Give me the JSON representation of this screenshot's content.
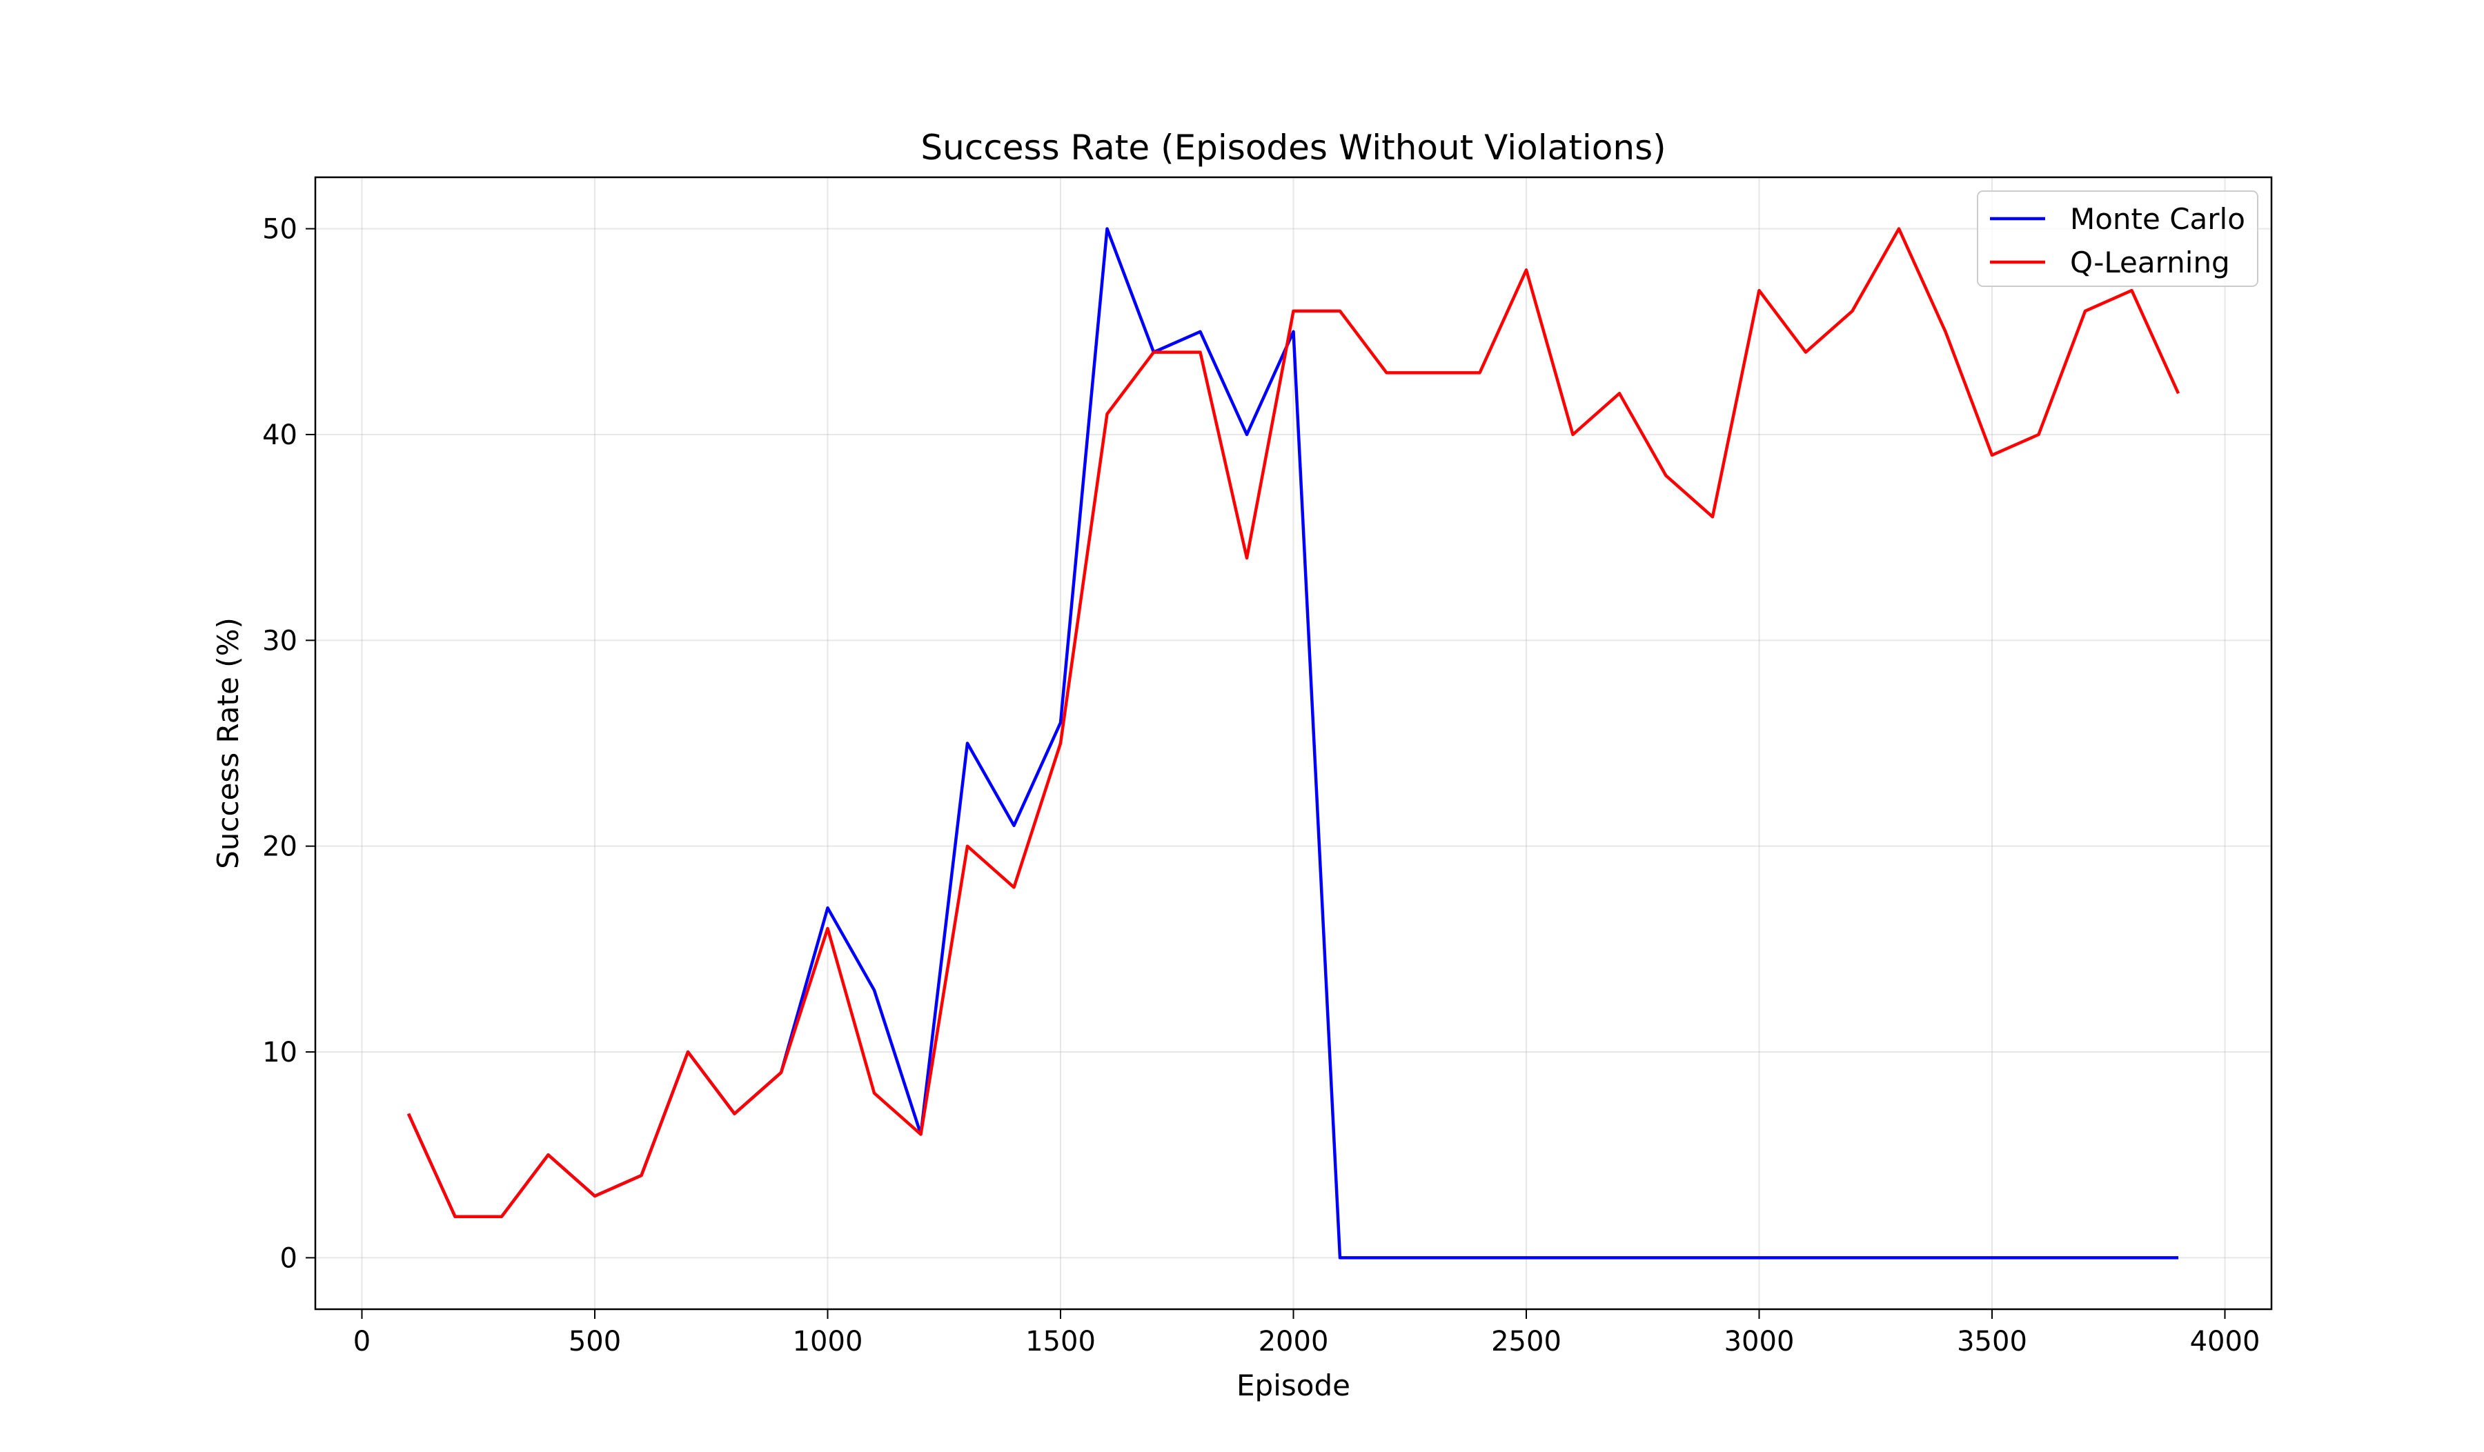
{
  "chart_data": {
    "type": "line",
    "title": "Success Rate (Episodes Without Violations)",
    "xlabel": "Episode",
    "ylabel": "Success Rate (%)",
    "xlim": [
      -100,
      4100
    ],
    "ylim": [
      -2.5,
      52.5
    ],
    "xticks": [
      0,
      500,
      1000,
      1500,
      2000,
      2500,
      3000,
      3500,
      4000
    ],
    "yticks": [
      0,
      10,
      20,
      30,
      40,
      50
    ],
    "grid": true,
    "legend_position": "top-right",
    "x": [
      100,
      200,
      300,
      400,
      500,
      600,
      700,
      800,
      900,
      1000,
      1100,
      1200,
      1300,
      1400,
      1500,
      1600,
      1700,
      1800,
      1900,
      2000,
      2100,
      2200,
      2300,
      2400,
      2500,
      2600,
      2700,
      2800,
      2900,
      3000,
      3100,
      3200,
      3300,
      3400,
      3500,
      3600,
      3700,
      3800,
      3900
    ],
    "series": [
      {
        "name": "Monte Carlo",
        "color": "#0000ff",
        "values": [
          7,
          2,
          2,
          5,
          3,
          4,
          10,
          7,
          9,
          17,
          13,
          6,
          25,
          21,
          26,
          50,
          44,
          45,
          40,
          45,
          0,
          0,
          0,
          0,
          0,
          0,
          0,
          0,
          0,
          0,
          0,
          0,
          0,
          0,
          0,
          0,
          0,
          0,
          0
        ]
      },
      {
        "name": "Q-Learning",
        "color": "#ff0000",
        "values": [
          7,
          2,
          2,
          5,
          3,
          4,
          10,
          7,
          9,
          16,
          8,
          6,
          20,
          18,
          25,
          41,
          44,
          44,
          34,
          46,
          46,
          43,
          43,
          43,
          48,
          40,
          42,
          38,
          36,
          47,
          44,
          46,
          50,
          45,
          39,
          40,
          46,
          47,
          42
        ]
      }
    ]
  }
}
